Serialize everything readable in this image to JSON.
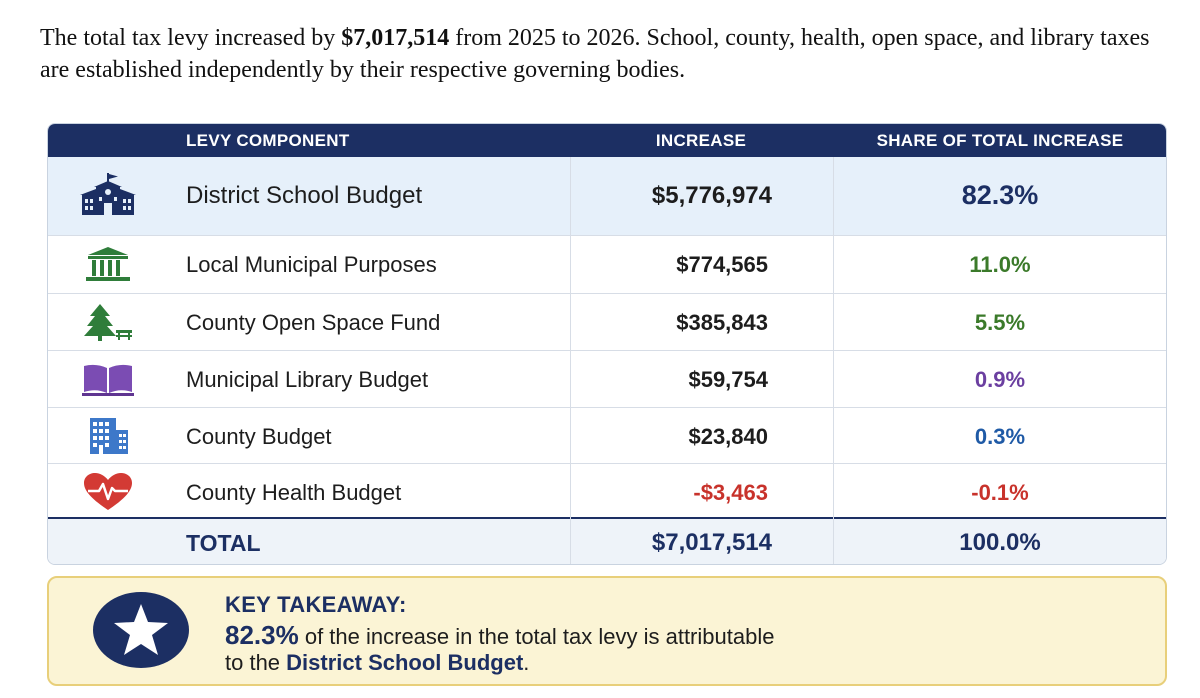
{
  "intro": {
    "prefix": "The total tax levy increased by ",
    "amount": "$7,017,514",
    "suffix": " from 2025 to 2026. School, county, health, open space, and library taxes are established independently by their respective governing bodies."
  },
  "table": {
    "headers": {
      "component": "LEVY COMPONENT",
      "increase": "INCREASE",
      "share": "SHARE OF TOTAL INCREASE"
    },
    "rows": [
      {
        "label": "District School Budget",
        "increase": "$5,776,974",
        "share": "82.3%",
        "icon": "school-icon"
      },
      {
        "label": "Local Municipal Purposes",
        "increase": "$774,565",
        "share": "11.0%",
        "icon": "municipal-building-icon"
      },
      {
        "label": "County Open Space Fund",
        "increase": "$385,843",
        "share": "5.5%",
        "icon": "tree-bench-icon"
      },
      {
        "label": "Municipal Library Budget",
        "increase": "$59,754",
        "share": "0.9%",
        "icon": "book-icon"
      },
      {
        "label": "County Budget",
        "increase": "$23,840",
        "share": "0.3%",
        "icon": "office-building-icon"
      },
      {
        "label": "County Health Budget",
        "increase": "-$3,463",
        "share": "-0.1%",
        "icon": "heart-pulse-icon"
      }
    ],
    "total": {
      "label": "TOTAL",
      "increase": "$7,017,514",
      "share": "100.0%"
    }
  },
  "takeaway": {
    "heading": "KEY TAKEAWAY:",
    "percent": "82.3%",
    "line1_rest": " of the increase in the total tax levy is attributable",
    "line2_prefix": "to the ",
    "line2_strong": "District School Budget",
    "line2_end": "."
  },
  "colors": {
    "navy": "#1c2f63",
    "green": "#3b7a2a",
    "purple": "#6b3fa0",
    "blue": "#1f5aa6",
    "red": "#c8322b",
    "takeaway_bg": "#fbf4d5"
  }
}
